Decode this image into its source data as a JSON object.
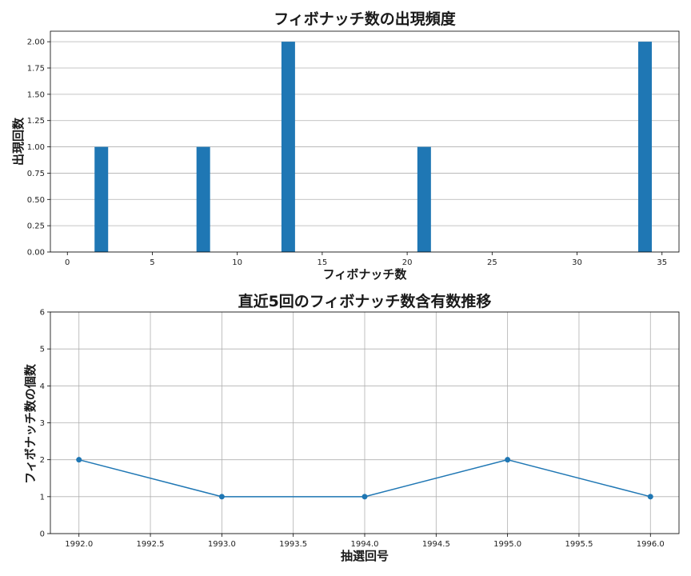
{
  "chart_data": [
    {
      "type": "bar",
      "title": "フィボナッチ数の出現頻度",
      "xlabel": "フィボナッチ数",
      "ylabel": "出現回数",
      "x": [
        2,
        8,
        13,
        21,
        34
      ],
      "values": [
        1,
        1,
        2,
        1,
        2
      ],
      "xlim": [
        -1,
        36
      ],
      "ylim": [
        0,
        2.1
      ],
      "xticks": [
        0,
        5,
        10,
        15,
        20,
        25,
        30,
        35
      ],
      "yticks": [
        "0.00",
        "0.25",
        "0.50",
        "0.75",
        "1.00",
        "1.25",
        "1.50",
        "1.75",
        "2.00"
      ],
      "grid": "horizontal",
      "color": "#1f77b4"
    },
    {
      "type": "line",
      "title": "直近5回のフィボナッチ数含有数推移",
      "xlabel": "抽選回号",
      "ylabel": "フィボナッチ数の個数",
      "x": [
        1992,
        1993,
        1994,
        1995,
        1996
      ],
      "values": [
        2,
        1,
        1,
        2,
        1
      ],
      "xlim": [
        1991.8,
        1996.2
      ],
      "ylim": [
        0,
        6
      ],
      "xticks": [
        "1992.0",
        "1992.5",
        "1993.0",
        "1993.5",
        "1994.0",
        "1994.5",
        "1995.0",
        "1995.5",
        "1996.0"
      ],
      "yticks": [
        "0",
        "1",
        "2",
        "3",
        "4",
        "5",
        "6"
      ],
      "grid": "both",
      "marker": "circle",
      "color": "#1f77b4"
    }
  ]
}
